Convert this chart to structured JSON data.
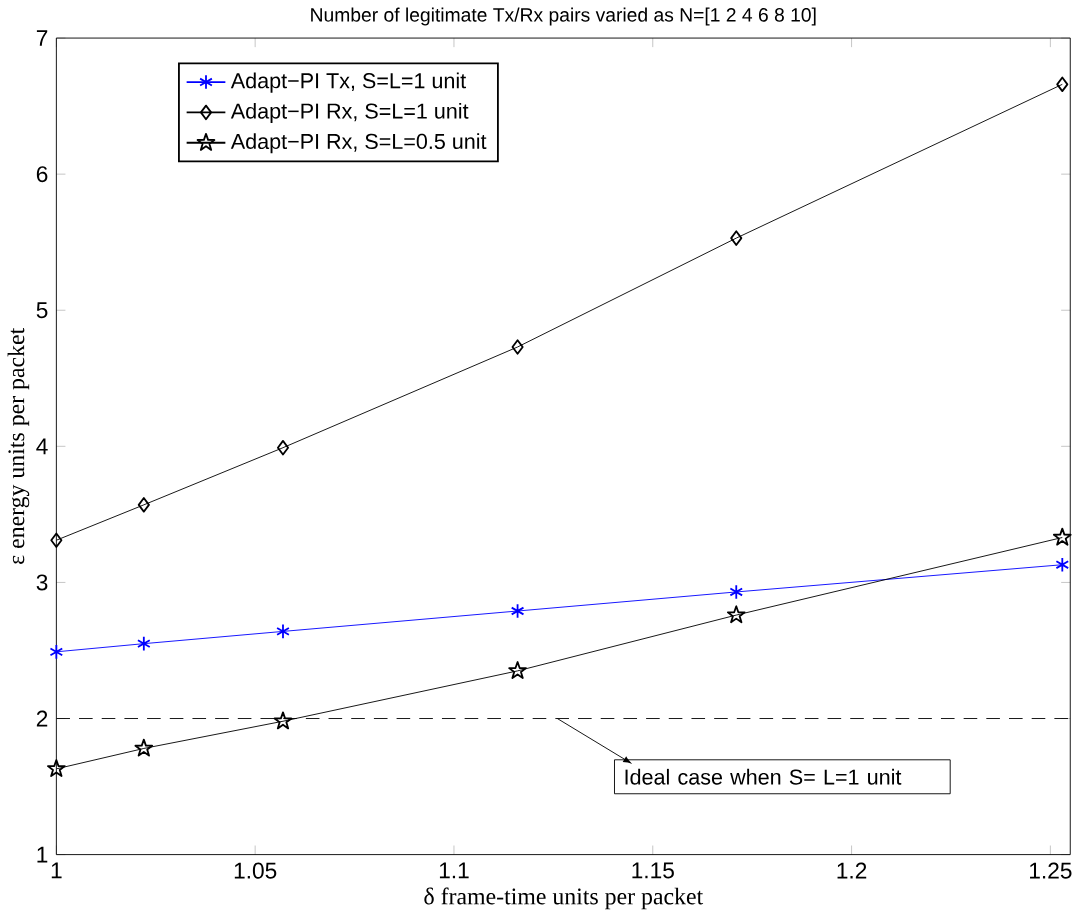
{
  "chart_data": {
    "type": "line",
    "title": "Number of legitimate Tx/Rx pairs varied as N=[1 2 4 6 8 10]",
    "xlabel": "δ frame-time units per packet",
    "ylabel": "ε energy units per packet",
    "x": [
      1,
      1.022,
      1.057,
      1.116,
      1.171,
      1.253
    ],
    "series": [
      {
        "name": "Adapt−PI Tx, S=L=1 unit",
        "color": "#0000ff",
        "marker": "cross",
        "values": [
          2.49,
          2.55,
          2.64,
          2.79,
          2.93,
          3.13
        ]
      },
      {
        "name": "Adapt−PI Rx, S=L=1 unit",
        "color": "#000000",
        "marker": "diamond",
        "values": [
          3.31,
          3.57,
          3.99,
          4.73,
          5.53,
          6.66
        ]
      },
      {
        "name": "Adapt−PI Rx, S=L=0.5 unit",
        "color": "#000000",
        "marker": "star",
        "values": [
          1.63,
          1.78,
          1.98,
          2.35,
          2.76,
          3.33
        ]
      }
    ],
    "xlim": [
      1,
      1.255
    ],
    "ylim": [
      1,
      7
    ],
    "xticks": [
      1,
      1.05,
      1.1,
      1.15,
      1.2,
      1.25
    ],
    "yticks": [
      1,
      2,
      3,
      4,
      5,
      6,
      7
    ],
    "ref_lines": [
      {
        "axis": "y",
        "value": 2,
        "color": "#000000",
        "line_style": "dashed"
      }
    ],
    "annotations": [
      {
        "text": "Ideal case when S= L=1 unit",
        "x": 1.126,
        "y": 2
      }
    ],
    "legend": "top left",
    "grid": false,
    "line_style": "solid"
  }
}
